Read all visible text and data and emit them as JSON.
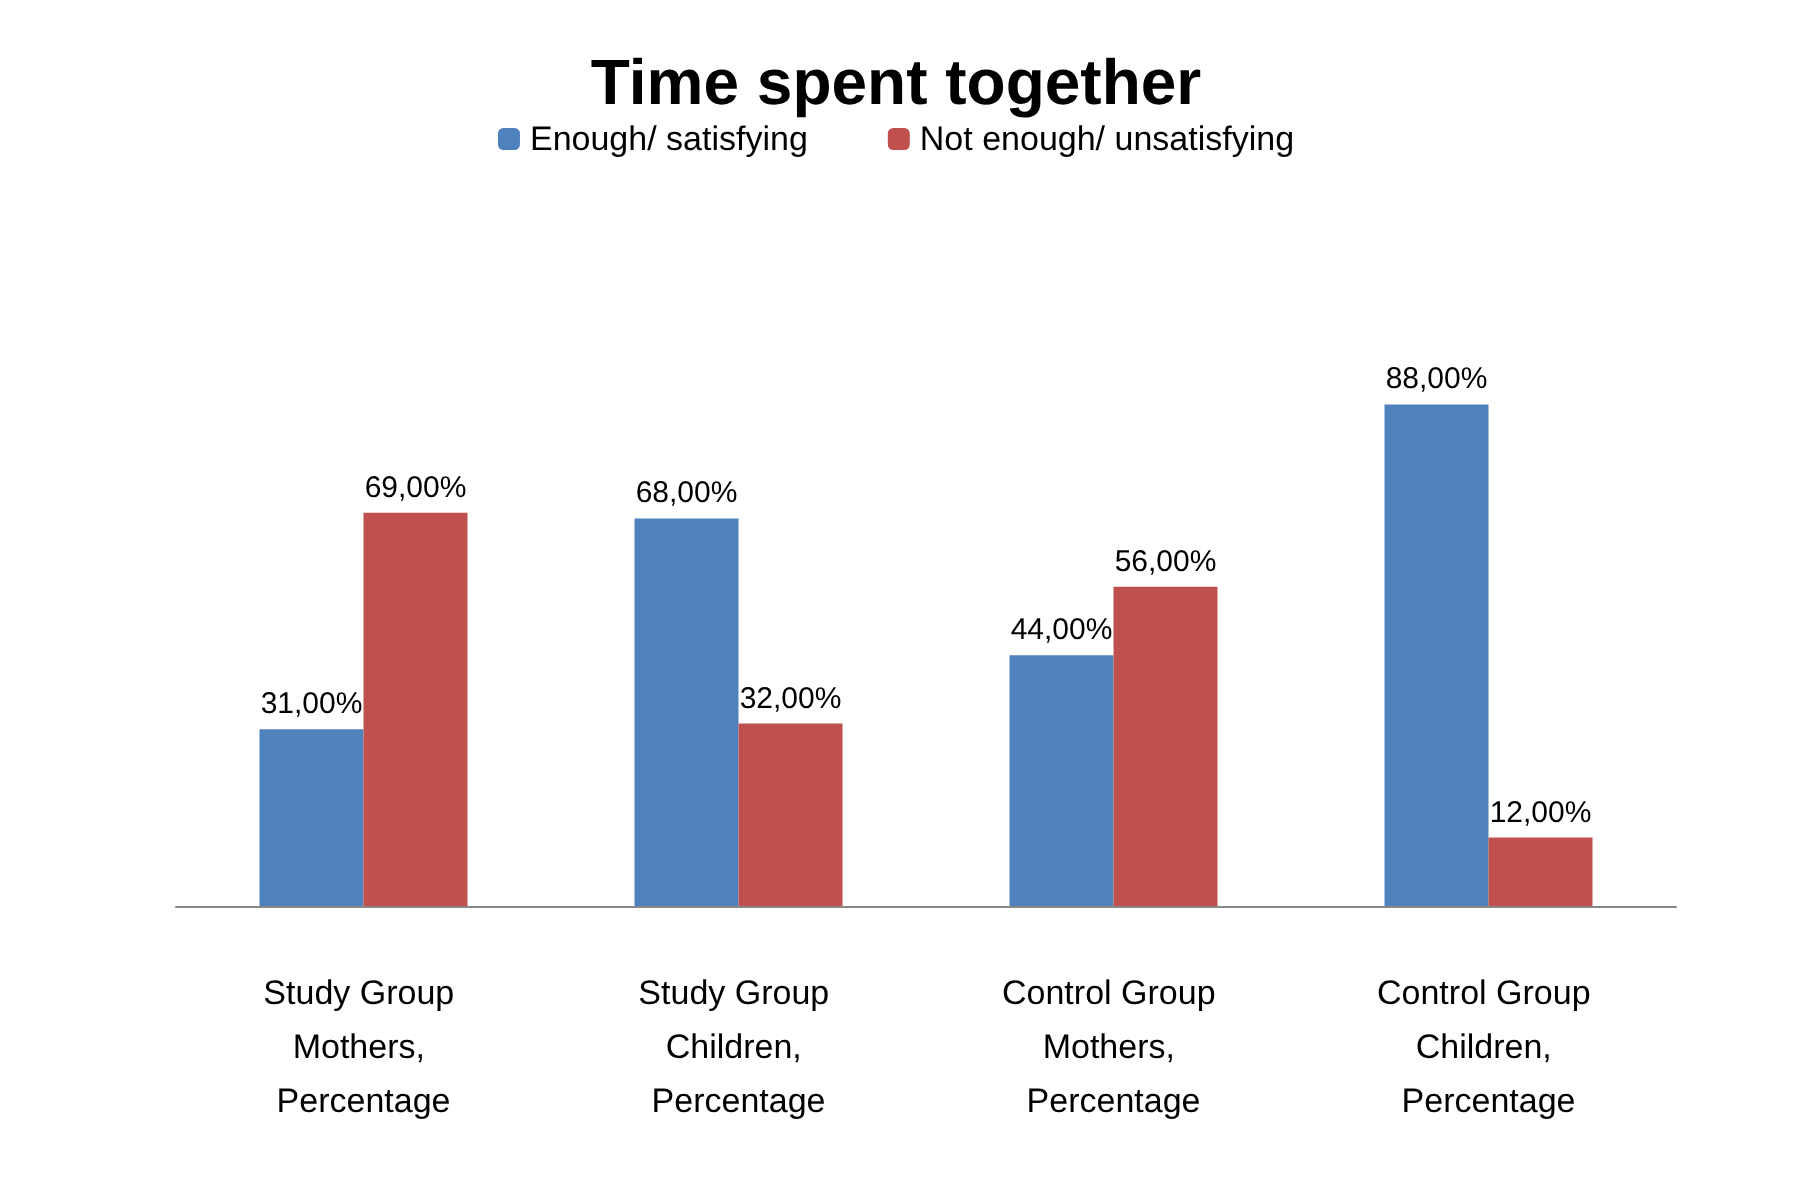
{
  "chart_data": {
    "type": "bar",
    "title": "Time spent together",
    "categories": [
      "Study Group Mothers, Percentage",
      "Study Group Children, Percentage",
      "Control Group Mothers, Percentage",
      "Control Group Children, Percentage"
    ],
    "series": [
      {
        "name": "Enough/ satisfying",
        "color": "#4f81bd",
        "values": [
          31,
          68,
          44,
          88
        ],
        "value_labels": [
          "31,00%",
          "68,00%",
          "44,00%",
          "88,00%"
        ]
      },
      {
        "name": "Not enough/ unsatisfying",
        "color": "#c0504d",
        "values": [
          69,
          32,
          56,
          12
        ],
        "value_labels": [
          "69,00%",
          "32,00%",
          "56,00%",
          "12,00%"
        ]
      }
    ],
    "legend": "top",
    "grid": false
  }
}
